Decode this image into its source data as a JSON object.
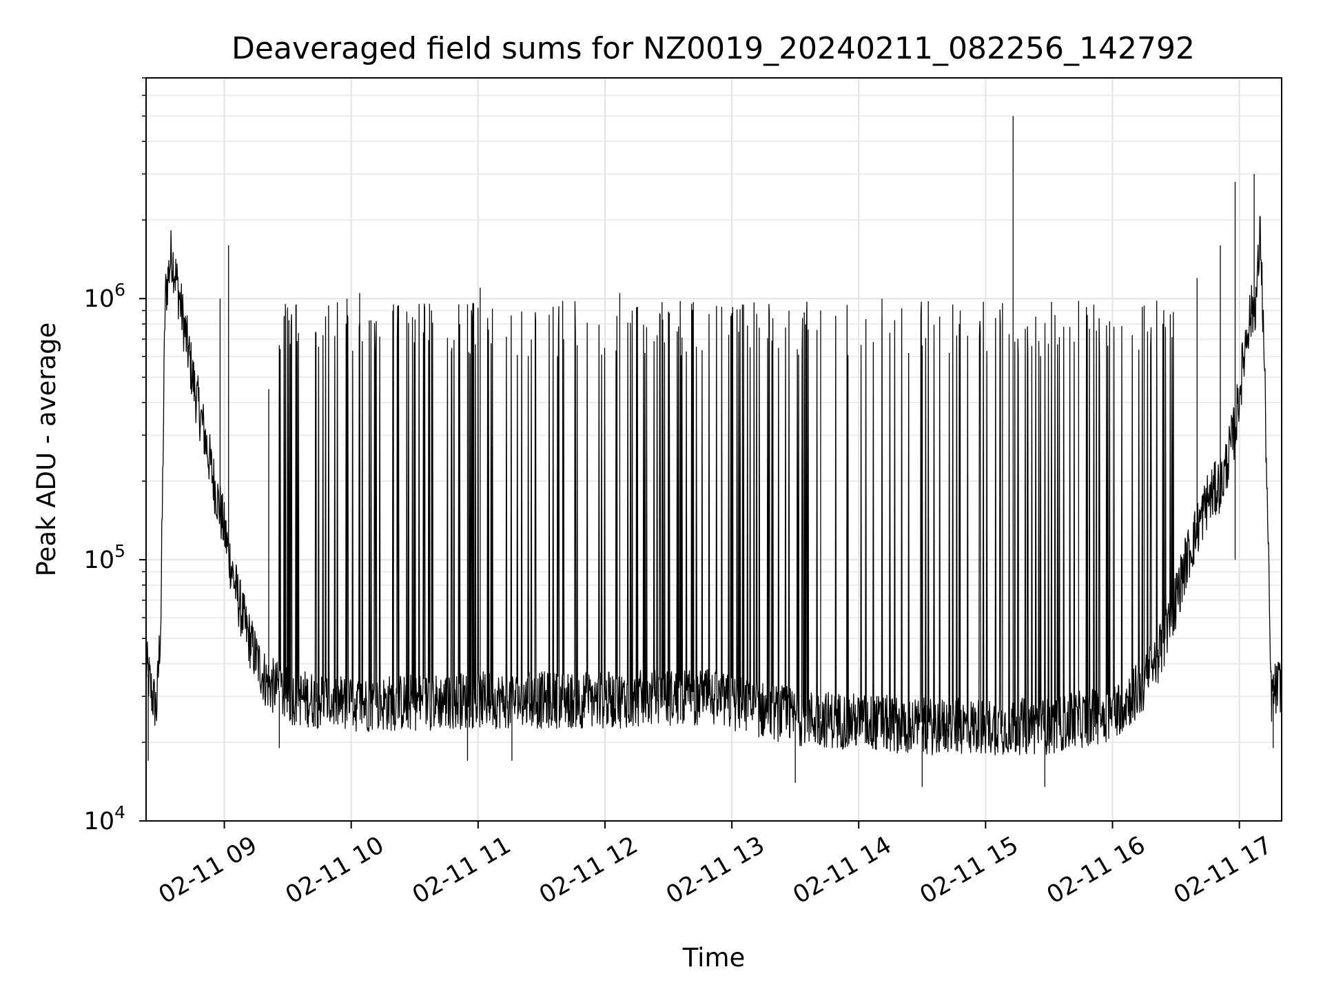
{
  "chart_data": {
    "type": "line",
    "title": "Deaveraged field sums for NZ0019_20240211_082256_142792",
    "xlabel": "Time",
    "ylabel": "Peak ADU - average",
    "yscale": "log",
    "ylim": [
      10000,
      7000000
    ],
    "xlim": [
      "2024-02-11 08:23",
      "2024-02-11 17:20"
    ],
    "grid": true,
    "legend": "none",
    "line_color": "#000000",
    "x_tick_labels": [
      "02-11 09",
      "02-11 10",
      "02-11 11",
      "02-11 12",
      "02-11 13",
      "02-11 14",
      "02-11 15",
      "02-11 16",
      "02-11 17"
    ],
    "y_tick_labels": [
      {
        "base": "10",
        "exp": "4"
      },
      {
        "base": "10",
        "exp": "5"
      },
      {
        "base": "10",
        "exp": "6"
      }
    ],
    "series": [
      {
        "baseline": {
          "x": [
            "2024-02-11 08:23",
            "2024-02-11 08:26",
            "2024-02-11 08:28",
            "2024-02-11 08:30",
            "2024-02-11 08:32",
            "2024-02-11 08:35",
            "2024-02-11 08:38",
            "2024-02-11 08:42",
            "2024-02-11 08:46",
            "2024-02-11 08:50",
            "2024-02-11 08:55",
            "2024-02-11 09:00",
            "2024-02-11 09:05",
            "2024-02-11 09:10",
            "2024-02-11 09:15",
            "2024-02-11 09:20",
            "2024-02-11 09:30",
            "2024-02-11 10:00",
            "2024-02-11 11:00",
            "2024-02-11 12:00",
            "2024-02-11 12:45",
            "2024-02-11 13:30",
            "2024-02-11 14:30",
            "2024-02-11 15:30",
            "2024-02-11 16:00",
            "2024-02-11 16:15",
            "2024-02-11 16:25",
            "2024-02-11 16:35",
            "2024-02-11 16:45",
            "2024-02-11 16:52",
            "2024-02-11 16:58",
            "2024-02-11 17:04",
            "2024-02-11 17:08",
            "2024-02-11 17:10",
            "2024-02-11 17:12",
            "2024-02-11 17:15",
            "2024-02-11 17:20"
          ],
          "y": [
            40000,
            30000,
            27000,
            60000,
            1000000,
            1500000,
            1100000,
            700000,
            450000,
            320000,
            200000,
            130000,
            80000,
            55000,
            42000,
            34000,
            30000,
            28000,
            29000,
            29000,
            30000,
            25000,
            23000,
            23000,
            26000,
            33000,
            50000,
            100000,
            170000,
            200000,
            320000,
            800000,
            1000000,
            1800000,
            500000,
            30000,
            34000
          ]
        },
        "spikes": {
          "x": [
            "2024-02-11 08:58",
            "2024-02-11 09:02",
            "2024-02-11 09:21",
            "2024-02-11 09:29",
            "2024-02-11 09:34",
            "2024-02-11 09:58",
            "2024-02-11 10:04",
            "2024-02-11 10:20",
            "2024-02-11 10:38",
            "2024-02-11 10:55",
            "2024-02-11 11:01",
            "2024-02-11 11:40",
            "2024-02-11 12:07",
            "2024-02-11 12:27",
            "2024-02-11 13:05",
            "2024-02-11 13:42",
            "2024-02-11 14:11",
            "2024-02-11 14:48",
            "2024-02-11 15:08",
            "2024-02-11 15:13",
            "2024-02-11 15:44",
            "2024-02-11 16:15",
            "2024-02-11 16:40",
            "2024-02-11 16:51",
            "2024-02-11 16:58",
            "2024-02-11 17:07"
          ],
          "y": [
            1000000,
            1600000,
            450000,
            900000,
            950000,
            1000000,
            1050000,
            950000,
            900000,
            950000,
            1100000,
            980000,
            1050000,
            970000,
            950000,
            900000,
            1000000,
            900000,
            960000,
            5000000,
            980000,
            940000,
            1200000,
            1600000,
            2800000,
            3000000
          ]
        },
        "dips": {
          "x": [
            "2024-02-11 08:24",
            "2024-02-11 09:26",
            "2024-02-11 10:55",
            "2024-02-11 11:16",
            "2024-02-11 13:30",
            "2024-02-11 14:30",
            "2024-02-11 15:28",
            "2024-02-11 16:58",
            "2024-02-11 17:16"
          ],
          "y": [
            17000,
            19000,
            17000,
            17000,
            14000,
            13500,
            13500,
            100000,
            19000
          ]
        }
      }
    ]
  }
}
